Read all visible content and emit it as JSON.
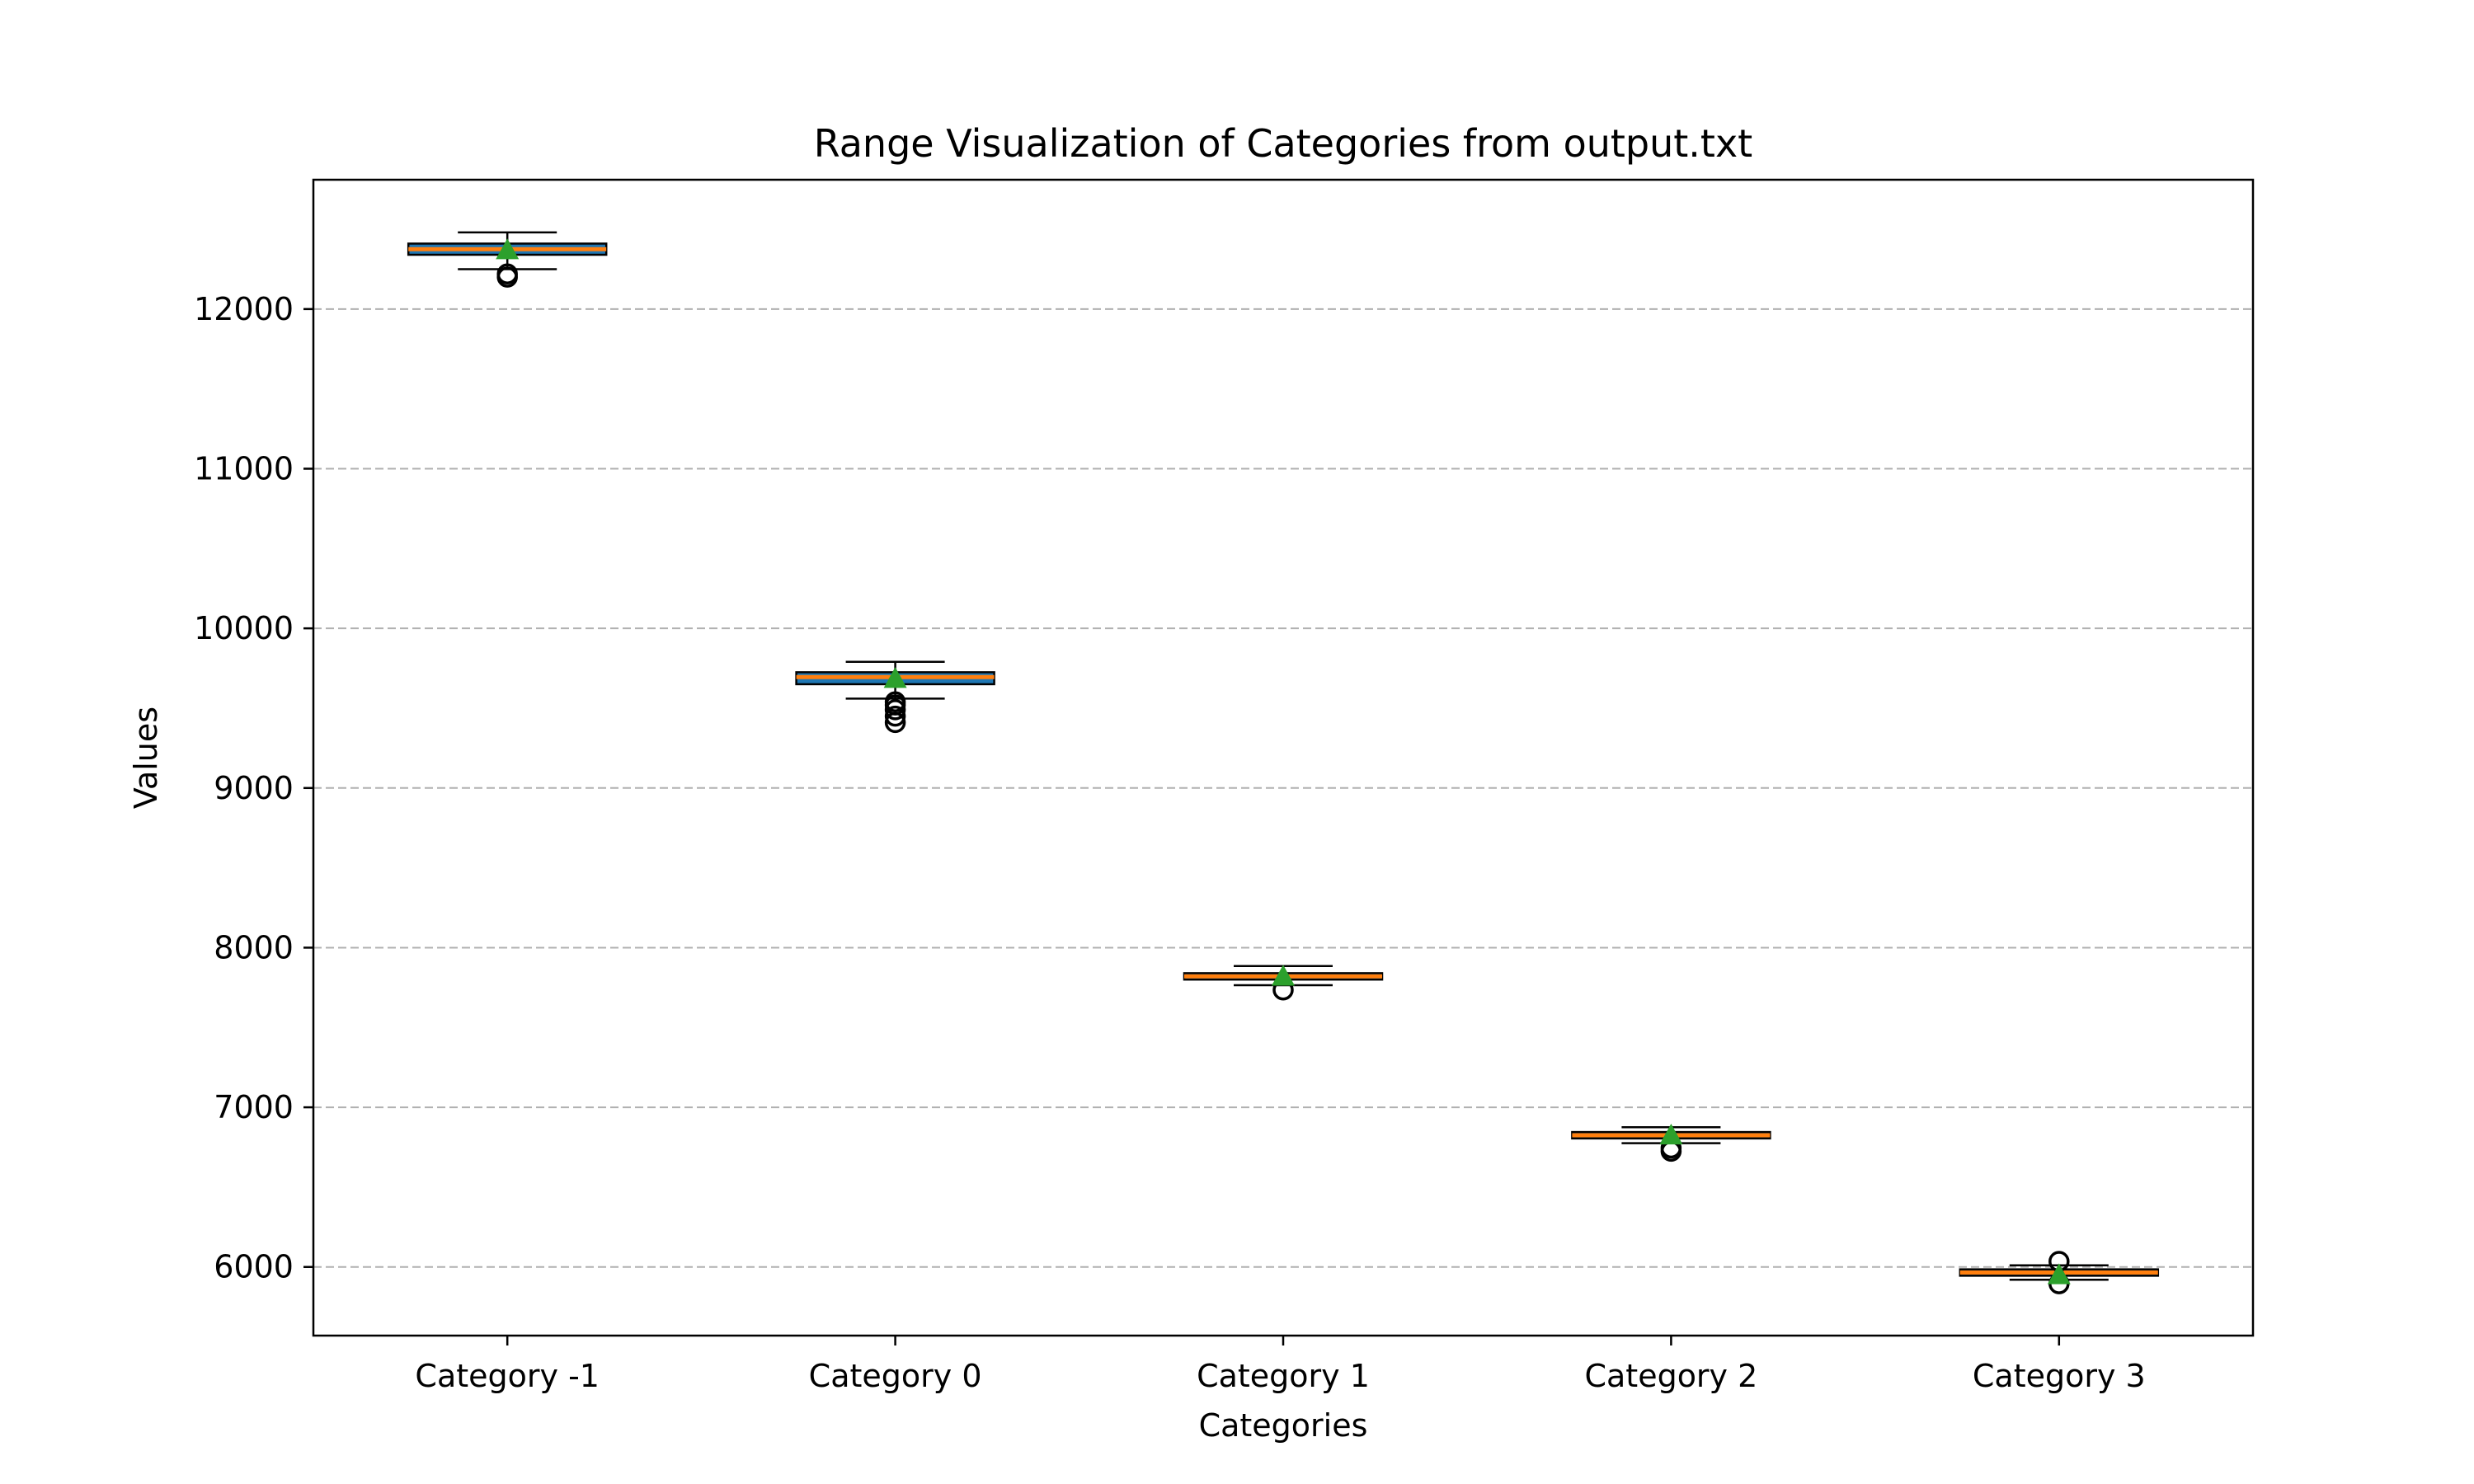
{
  "chart_data": {
    "type": "box",
    "title": "Range Visualization of Categories from output.txt",
    "xlabel": "Categories",
    "ylabel": "Values",
    "ylim": [
      5570,
      12810
    ],
    "yticks": [
      6000,
      7000,
      8000,
      9000,
      10000,
      11000,
      12000
    ],
    "ytick_labels": [
      "6000",
      "7000",
      "8000",
      "9000",
      "10000",
      "11000",
      "12000"
    ],
    "grid": {
      "axis": "y",
      "style": "dashed",
      "color": "#b0b0b0"
    },
    "colors": {
      "box": "#1f77b4",
      "median": "#ff7f0e",
      "mean": "#2ca02c",
      "whisker": "#000000",
      "outlier": "#000000"
    },
    "categories": [
      "Category -1",
      "Category 0",
      "Category 1",
      "Category 2",
      "Category 3"
    ],
    "boxes": [
      {
        "category": "Category -1",
        "whisker_low": 12250,
        "q1": 12340,
        "median": 12375,
        "q3": 12410,
        "whisker_high": 12480,
        "mean": 12370,
        "outliers": [
          12200,
          12220
        ]
      },
      {
        "category": "Category 0",
        "whisker_low": 9560,
        "q1": 9650,
        "median": 9695,
        "q3": 9725,
        "whisker_high": 9790,
        "mean": 9685,
        "outliers": [
          9410,
          9450,
          9490,
          9520,
          9540
        ]
      },
      {
        "category": "Category 1",
        "whisker_low": 7765,
        "q1": 7800,
        "median": 7820,
        "q3": 7840,
        "whisker_high": 7885,
        "mean": 7820,
        "outliers": [
          7735
        ]
      },
      {
        "category": "Category 2",
        "whisker_low": 6775,
        "q1": 6805,
        "median": 6825,
        "q3": 6845,
        "whisker_high": 6875,
        "mean": 6825,
        "outliers": [
          6725,
          6745
        ]
      },
      {
        "category": "Category 3",
        "whisker_low": 5920,
        "q1": 5945,
        "median": 5965,
        "q3": 5985,
        "whisker_high": 6010,
        "mean": 5950,
        "outliers": [
          5895,
          6035
        ]
      }
    ]
  }
}
